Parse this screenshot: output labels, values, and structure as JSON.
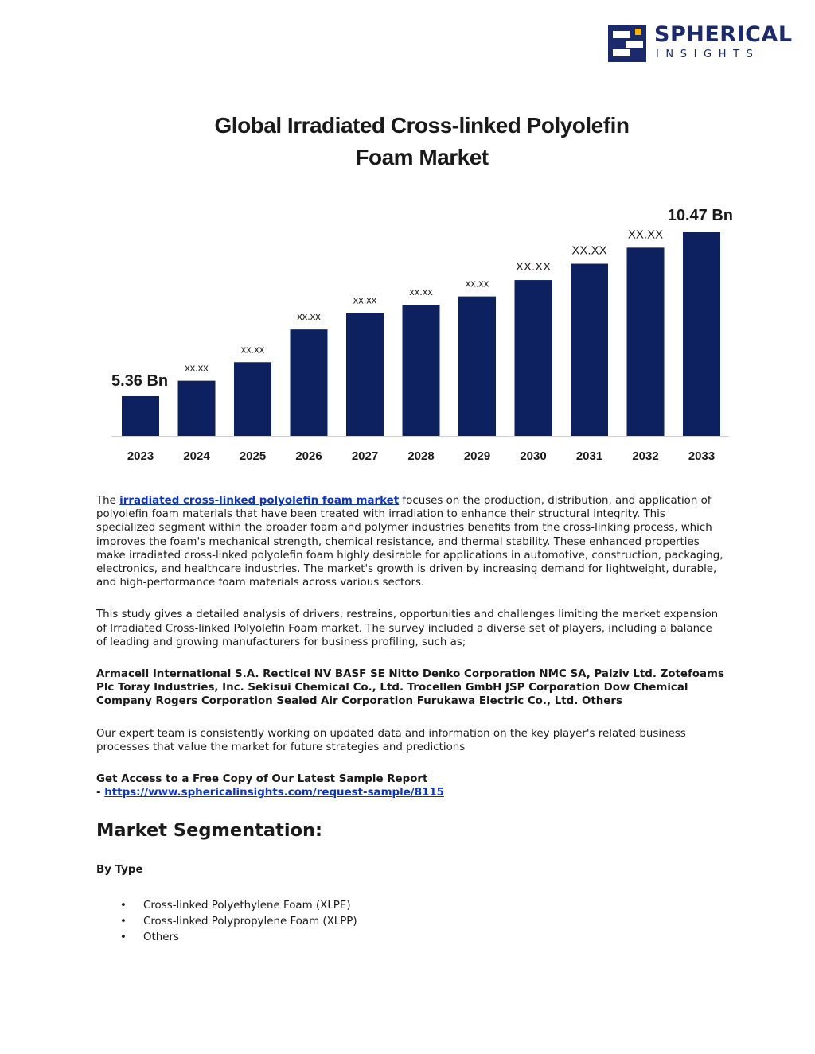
{
  "logo": {
    "word1": "SPHERICAL",
    "word2": "INSIGHTS",
    "color": "#1a2a6c",
    "accent": "#f2b600"
  },
  "chart_data": {
    "type": "bar",
    "title_line1": "Global Irradiated Cross-linked Polyolefin",
    "title_line2": "Foam Market",
    "categories": [
      "2023",
      "2024",
      "2025",
      "2026",
      "2027",
      "2028",
      "2029",
      "2030",
      "2031",
      "2032",
      "2033"
    ],
    "values": [
      5.36,
      5.84,
      6.42,
      7.44,
      7.95,
      8.21,
      8.47,
      8.98,
      9.49,
      9.99,
      10.47
    ],
    "data_labels": [
      "5.36 Bn",
      "xx.xx",
      "xx.xx",
      "xx.xx",
      "xx.xx",
      "xx.xx",
      "xx.xx",
      "XX.XX",
      "XX.XX",
      "XX.XX",
      "10.47 Bn"
    ],
    "bar_color": "#0d2161",
    "grid": false
  },
  "article": {
    "p1_before": "The ",
    "p1_link": "irradiated cross-linked polyolefin foam market",
    "p1_after": " focuses on the production, distribution, and application of polyolefin foam materials that have been treated with irradiation to enhance their structural integrity. This specialized segment within the broader foam and polymer industries benefits from the cross-linking process, which improves the foam's mechanical strength, chemical resistance, and thermal stability. These enhanced properties make irradiated cross-linked polyolefin foam highly desirable for applications in automotive, construction, packaging, electronics, and healthcare industries. The market's growth is driven by increasing demand for lightweight, durable, and high-performance foam materials across various sectors.",
    "p2": "This study gives a detailed analysis of drivers, restrains, opportunities and challenges limiting the market expansion of Irradiated Cross-linked Polyolefin Foam market. The survey included a diverse set of players, including a balance of leading and growing manufacturers for business profiling, such as;",
    "p3": "Armacell International S.A. Recticel NV BASF SE Nitto Denko Corporation NMC SA, Palziv Ltd. Zotefoams Plc Toray Industries, Inc. Sekisui Chemical Co., Ltd. Trocellen GmbH JSP Corporation Dow Chemical Company Rogers Corporation Sealed Air Corporation Furukawa Electric Co., Ltd. Others",
    "p4": "Our expert team is consistently working on updated data and information on the key player's related business processes that value the market for future strategies and predictions",
    "p5_line1": "Get Access to a Free Copy of Our Latest Sample Report",
    "p5_prefix": "- ",
    "p5_link": "https://www.sphericalinsights.com/request-sample/8115",
    "seg_heading": "Market Segmentation:",
    "by_type": "By Type",
    "bullet": "•",
    "types": [
      "Cross-linked Polyethylene Foam (XLPE)",
      "Cross-linked Polypropylene Foam (XLPP)",
      "Others"
    ]
  }
}
